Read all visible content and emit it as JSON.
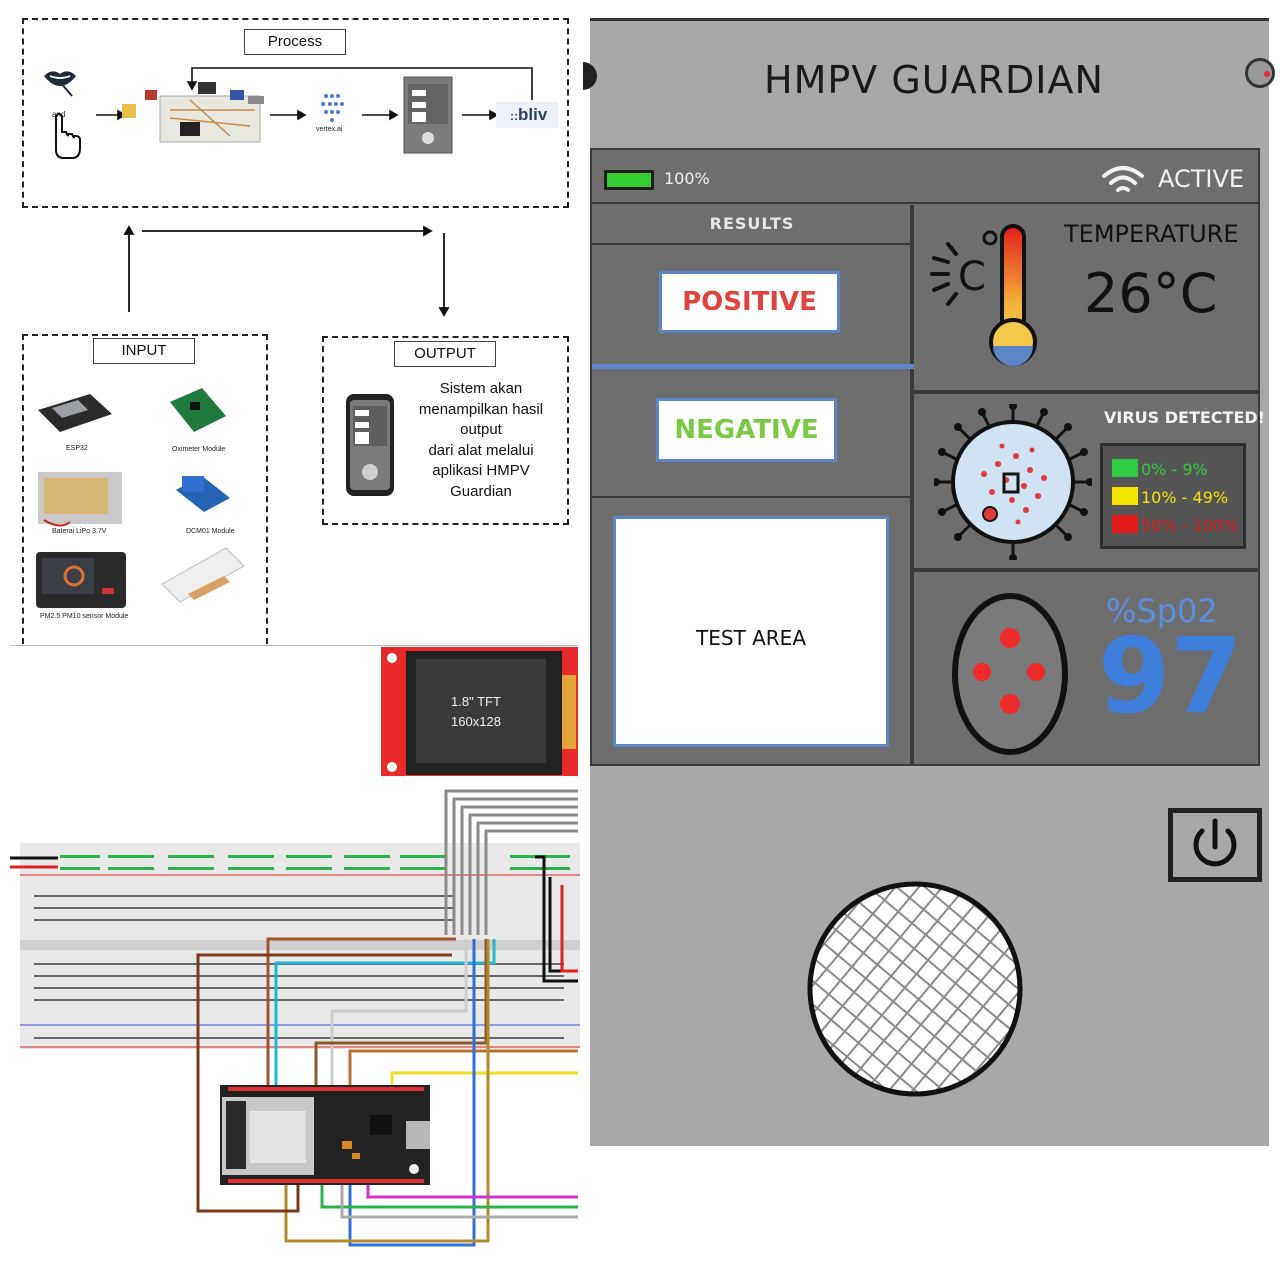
{
  "diagram": {
    "process_label": "Process",
    "input_label": "INPUT",
    "output_label": "OUTPUT",
    "and_text": "and",
    "vertex_label": "vertex.ai",
    "bliv_label": "bliv",
    "output_lines": [
      "Sistem akan",
      "menampilkan hasil",
      "output",
      "dari alat melalui",
      "aplikasi HMPV",
      "Guardian"
    ],
    "components": [
      "ESP32",
      "Oximeter Module",
      "Baterai LiPo 3.7V",
      "DCM01 Module",
      "PM2.5 PM10 sensor Module"
    ]
  },
  "circuit": {
    "tft_line1": "1.8\" TFT",
    "tft_line2": "160x128"
  },
  "device": {
    "title": "HMPV GUARDIAN",
    "battery_pct": "100%",
    "battery_level": 1.0,
    "status": "ACTIVE",
    "results_label": "RESULTS",
    "positive_label": "POSITIVE",
    "negative_label": "NEGATIVE",
    "test_area_label": "TEST AREA",
    "temperature_label": "TEMPERATURE",
    "temperature_value": "26°C",
    "virus_label": "VIRUS DETECTED!",
    "virus_legend": [
      {
        "text": "0% - 9%",
        "color": "#2ecc40"
      },
      {
        "text": "10% - 49%",
        "color": "#f5e400"
      },
      {
        "text": "50% - 100%",
        "color": "#e31b1b"
      }
    ],
    "spo2_label": "%Sp02",
    "spo2_value": "97",
    "colors": {
      "accent_blue": "#3f7fdc",
      "positive_red": "#e0433f",
      "negative_green": "#7ac943",
      "battery_green": "#33cc33"
    }
  }
}
